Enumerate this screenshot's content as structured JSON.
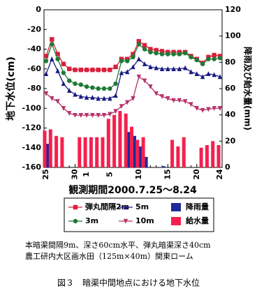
{
  "chart_data": {
    "type": "combo",
    "ylabel": "地下水位(cm)",
    "y2label": "降雨及び給水量(mm)",
    "xlabel": "観測期間2000.7.25～8.24",
    "categories": [
      "25",
      null,
      null,
      null,
      null,
      "30",
      null,
      "1",
      null,
      null,
      null,
      "5",
      null,
      null,
      null,
      null,
      "10",
      null,
      null,
      null,
      null,
      "15",
      null,
      null,
      null,
      null,
      "20",
      null,
      null,
      null,
      "24"
    ],
    "ylim": [
      -160,
      0
    ],
    "yticks": [
      0,
      -20,
      -40,
      -60,
      -80,
      -100,
      -120,
      -140,
      -160
    ],
    "y2lim": [
      0,
      120
    ],
    "y2ticks": [
      0,
      20,
      40,
      60,
      80,
      100,
      120
    ],
    "series": [
      {
        "name": "弾丸間隔2m",
        "type": "line",
        "marker": "square",
        "color": "#d8203c",
        "values": [
          -47,
          -30,
          -45,
          -55,
          -60,
          -61,
          -61,
          -61,
          -61,
          -61,
          -61,
          -61,
          -58,
          -50,
          -50,
          -45,
          -32,
          -36,
          -40,
          -41,
          -42,
          -43,
          -43,
          -43,
          -43,
          -47,
          -50,
          -54,
          -48,
          -46,
          -47
        ]
      },
      {
        "name": "3m",
        "type": "line",
        "marker": "circle",
        "color": "#1f7a35",
        "values": [
          -52,
          -35,
          -50,
          -64,
          -72,
          -75,
          -76,
          -78,
          -79,
          -80,
          -80,
          -80,
          -75,
          -52,
          -52,
          -48,
          -35,
          -40,
          -43,
          -44,
          -45,
          -45,
          -45,
          -45,
          -44,
          -48,
          -51,
          -55,
          -50,
          -50,
          -49
        ]
      },
      {
        "name": "5m",
        "type": "line",
        "marker": "triangle",
        "color": "#1a1a80",
        "values": [
          -65,
          -50,
          -62,
          -75,
          -82,
          -86,
          -88,
          -89,
          -89,
          -90,
          -90,
          -90,
          -87,
          -64,
          -63,
          -58,
          -50,
          -55,
          -58,
          -59,
          -60,
          -60,
          -60,
          -60,
          -59,
          -63,
          -65,
          -68,
          -65,
          -66,
          -68
        ]
      },
      {
        "name": "10m",
        "type": "line",
        "marker": "triangle-down",
        "color": "#b8306a",
        "values": [
          -85,
          -90,
          -93,
          -100,
          -105,
          -107,
          -107,
          -107,
          -107,
          -107,
          -107,
          -106,
          -103,
          -98,
          -94,
          -90,
          -68,
          -72,
          -78,
          -85,
          -88,
          -90,
          -92,
          -92,
          -93,
          -96,
          -100,
          -102,
          -101,
          -100,
          -100
        ]
      },
      {
        "name": "降雨量",
        "type": "bar",
        "axis": "y2",
        "color": "#1c2a9c",
        "values": [
          18,
          null,
          null,
          null,
          null,
          null,
          null,
          null,
          null,
          null,
          null,
          null,
          null,
          null,
          27,
          24,
          16,
          8,
          null,
          null,
          1,
          null,
          null,
          null,
          null,
          null,
          null,
          null,
          null,
          null,
          null
        ]
      },
      {
        "name": "給水量",
        "type": "bar",
        "axis": "y2",
        "color": "#f5204e",
        "values": [
          28,
          29,
          24,
          23,
          null,
          null,
          23,
          23,
          23,
          23,
          23,
          37,
          40,
          43,
          41,
          31,
          21,
          23,
          null,
          null,
          null,
          null,
          21,
          16,
          23,
          null,
          null,
          15,
          17,
          20,
          17
        ]
      }
    ],
    "notes": [
      "本暗渠間隔9m、深さ60cm水平、弾丸暗渠深さ40cm",
      "農工研内大区画水田（125m×40m）関東ローム"
    ],
    "caption": "図３　暗渠中間地点における地下水位"
  }
}
